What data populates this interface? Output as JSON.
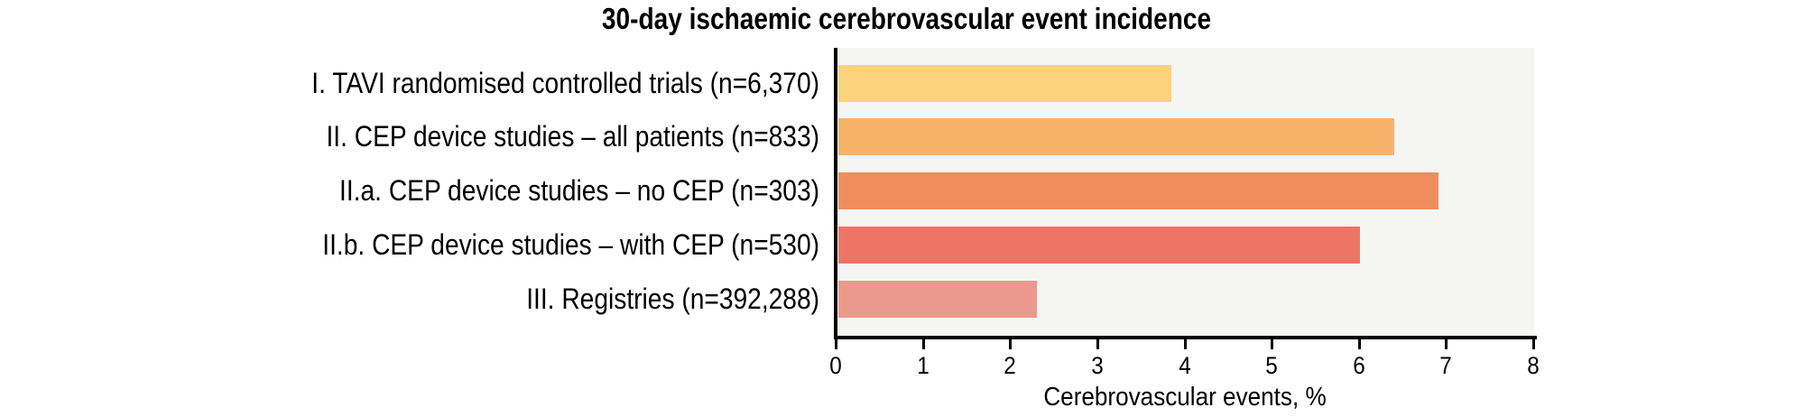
{
  "figure": {
    "title": "30-day ischaemic cerebrovascular event incidence"
  },
  "chart_data": {
    "type": "bar",
    "orientation": "horizontal",
    "title": "30-day ischaemic cerebrovascular event incidence",
    "categories": [
      "I. TAVI randomised controlled trials (n=6,370)",
      "II. CEP device studies – all patients (n=833)",
      "II.a. CEP device studies – no CEP (n=303)",
      "II.b. CEP device studies – with CEP (n=530)",
      "III. Registries (n=392,288)"
    ],
    "values": [
      3.85,
      6.4,
      6.9,
      6.0,
      2.3
    ],
    "bar_colors": [
      "#fcd27d",
      "#f7b269",
      "#f08d5c",
      "#ed7566",
      "#ec998d"
    ],
    "xlabel": "Cerebrovascular events, %",
    "xlim": [
      0,
      8
    ],
    "x_ticks": [
      0,
      1,
      2,
      3,
      4,
      5,
      6,
      7,
      8
    ],
    "plot_background": "#f5f5f4",
    "axis_color": "#000000",
    "grid": false,
    "legend": "none",
    "value_labels_shown": false
  }
}
